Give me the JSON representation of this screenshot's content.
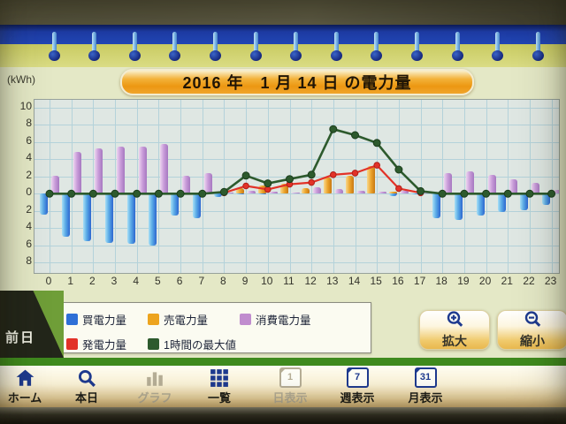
{
  "header": {
    "title": "2016 年　1 月 14 日 の電力量",
    "unit_label": "(kWh)"
  },
  "prev_day_tab": {
    "label": "前日"
  },
  "buttons": {
    "zoom_in": {
      "label": "拡大",
      "icon": "magnifier-plus-icon"
    },
    "zoom_out": {
      "label": "縮小",
      "icon": "magnifier-minus-icon"
    }
  },
  "nav": {
    "items": [
      {
        "label": "ホーム",
        "icon": "home-icon",
        "disabled": false
      },
      {
        "label": "本日",
        "icon": "search-icon",
        "disabled": false
      },
      {
        "label": "グラフ",
        "icon": "bar-chart-icon",
        "disabled": true
      },
      {
        "label": "一覧",
        "icon": "grid-icon",
        "disabled": false
      },
      {
        "label": "日表示",
        "icon": "calendar-icon",
        "badge": "1",
        "disabled": true
      },
      {
        "label": "週表示",
        "icon": "calendar-icon",
        "badge": "7",
        "disabled": false
      },
      {
        "label": "月表示",
        "icon": "calendar-icon",
        "badge": "31",
        "disabled": false
      }
    ]
  },
  "colors": {
    "purchased": "#2e6fd6",
    "sold": "#eda41e",
    "consumed": "#c08cce",
    "generation": "#e23228",
    "hourly_max": "#2d5a2d",
    "accent_orange": "#ef9d18",
    "nav_blue": "#1e3a8f"
  },
  "chart_data": {
    "type": "bar+line",
    "title": "2016 年　1 月 14 日 の電力量",
    "ylabel": "(kWh)",
    "ylim": [
      -9.2,
      10.9
    ],
    "grid": true,
    "legend_position": "bottom-left",
    "yticks": {
      "values": [
        10,
        8,
        6,
        4,
        2,
        0,
        -2,
        -4,
        -6,
        -8
      ],
      "labels": [
        "10",
        "8",
        "6",
        "4",
        "2",
        "0",
        "2",
        "4",
        "6",
        "8"
      ]
    },
    "categories": [
      "0",
      "1",
      "2",
      "3",
      "4",
      "5",
      "6",
      "7",
      "8",
      "9",
      "10",
      "11",
      "12",
      "13",
      "14",
      "15",
      "16",
      "17",
      "18",
      "19",
      "20",
      "21",
      "22",
      "23"
    ],
    "series": [
      {
        "name": "買電力量",
        "type": "bar",
        "slot": "left",
        "color": "#2e6fd6",
        "values": [
          -2.4,
          -5.0,
          -5.5,
          -5.7,
          -5.8,
          -6.0,
          -2.5,
          -2.8,
          -0.4,
          -0.1,
          -0.1,
          0,
          0,
          0,
          0,
          0,
          -0.3,
          -0.1,
          -2.8,
          -3.1,
          -2.5,
          -2.1,
          -1.9,
          -1.3
        ]
      },
      {
        "name": "売電力量",
        "type": "bar",
        "slot": "left",
        "color": "#eda41e",
        "values": [
          0,
          0,
          0,
          0,
          0,
          0,
          0,
          0,
          0.1,
          0.7,
          1.0,
          1.2,
          0.6,
          1.9,
          2.1,
          3.2,
          0.2,
          0,
          0,
          0,
          0,
          0,
          0,
          0
        ]
      },
      {
        "name": "消費電力量",
        "type": "bar",
        "slot": "right",
        "color": "#c08cce",
        "values": [
          2.1,
          4.9,
          5.3,
          5.5,
          5.5,
          5.8,
          2.1,
          2.4,
          0.1,
          0.3,
          0.2,
          0.1,
          0.8,
          0.5,
          0.3,
          0.2,
          0.3,
          0.2,
          2.4,
          2.6,
          2.2,
          1.7,
          1.3,
          0.4
        ]
      },
      {
        "name": "発電力量",
        "type": "line",
        "color": "#e23228",
        "values": [
          null,
          null,
          null,
          null,
          null,
          null,
          null,
          null,
          0.1,
          0.9,
          0.5,
          1.1,
          1.3,
          2.2,
          2.4,
          3.3,
          0.6,
          0.1,
          null,
          null,
          null,
          null,
          null,
          null
        ]
      },
      {
        "name": "1時間の最大値",
        "type": "line",
        "color": "#2d5a2d",
        "values": [
          0,
          0,
          0,
          0,
          0,
          0,
          0,
          0,
          0.2,
          2.1,
          1.2,
          1.7,
          2.2,
          7.5,
          6.8,
          5.9,
          2.8,
          0.3,
          0,
          0,
          0,
          0,
          0,
          0
        ]
      }
    ]
  }
}
